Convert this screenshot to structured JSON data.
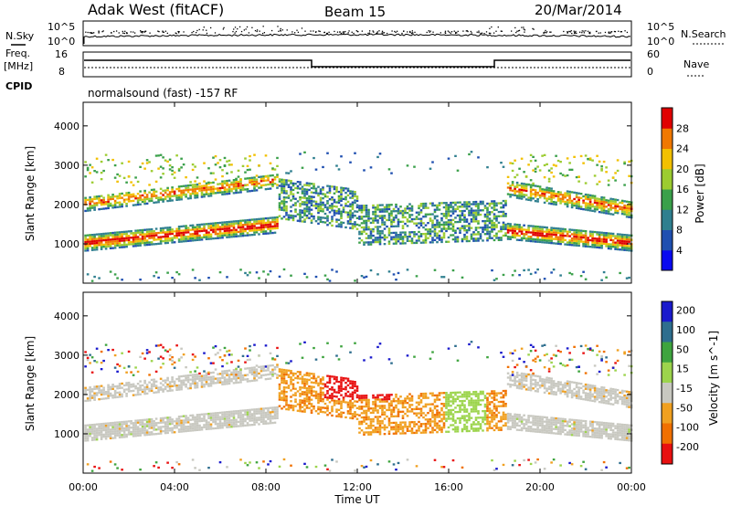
{
  "header": {
    "title": "Adak West (fitACF)",
    "beam": "Beam 15",
    "date": "20/Mar/2014"
  },
  "status_panel": {
    "nsky_label": "N.Sky",
    "nsearch_label": "N.Search",
    "noise_ticks": [
      "10^5",
      "10^0"
    ],
    "freq_label": "Freq.",
    "freq_unit": "[MHz]",
    "freq_ticks": [
      "16",
      "8"
    ],
    "nave_label": "Nave",
    "nave_ticks": [
      "60",
      "0"
    ],
    "cpid_label": "CPID",
    "cpid_text": "normalsound (fast) -157 RF"
  },
  "chart_data": [
    {
      "type": "heatmap",
      "name": "power",
      "ylabel": "Slant Range [km]",
      "xlabel": "",
      "y_ticks": [
        1000,
        2000,
        3000,
        4000
      ],
      "ylim": [
        0,
        4600
      ],
      "colorbar": {
        "label": "Power [dB]",
        "ticks": [
          4,
          8,
          12,
          16,
          20,
          24,
          28
        ],
        "range": [
          0,
          32
        ],
        "colors": [
          "#0a0af0",
          "#1f4fb0",
          "#2f7f8f",
          "#3aa04a",
          "#9ccc30",
          "#f2c000",
          "#f07800",
          "#e00000"
        ]
      }
    },
    {
      "type": "heatmap",
      "name": "velocity",
      "ylabel": "Slant Range [km]",
      "xlabel": "Time UT",
      "x_ticks": [
        "00:00",
        "04:00",
        "08:00",
        "12:00",
        "16:00",
        "20:00",
        "00:00"
      ],
      "y_ticks": [
        1000,
        2000,
        3000,
        4000
      ],
      "ylim": [
        0,
        4600
      ],
      "colorbar": {
        "label": "Velocity [m s^-1]",
        "ticks": [
          "200",
          "100",
          "50",
          "15",
          "-15",
          "-50",
          "-100",
          "-200"
        ],
        "colors": [
          "#1a1acc",
          "#2e6e8e",
          "#3ea43e",
          "#9cd44c",
          "#c8c8c0",
          "#f0a020",
          "#f07000",
          "#e81010"
        ]
      }
    }
  ]
}
